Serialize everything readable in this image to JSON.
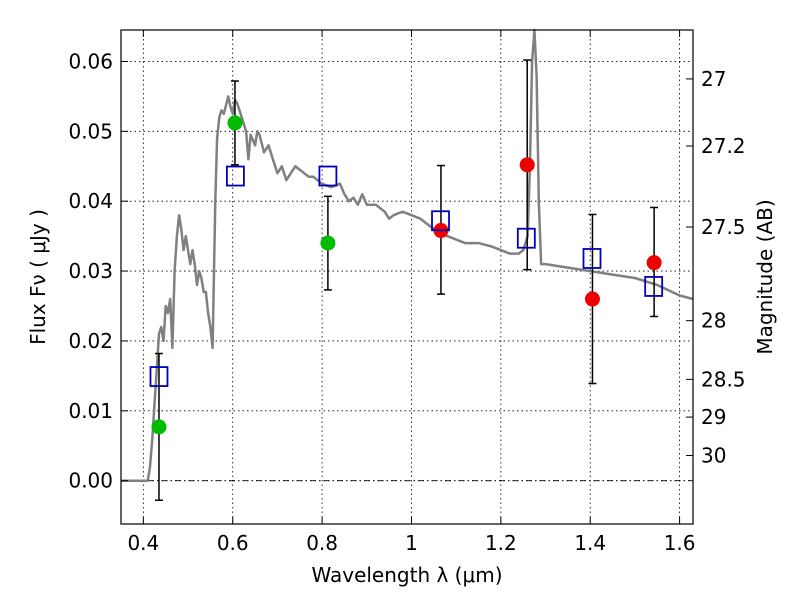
{
  "chart_data": {
    "type": "scatter",
    "xlabel": "Wavelength  λ (μm)",
    "ylabel": "Flux  Fν ( μJy )",
    "ylabel_right": "Magnitude (AB)",
    "xlim": [
      0.35,
      1.63
    ],
    "ylim": [
      -0.0062,
      0.0645
    ],
    "x_ticks": [
      0.4,
      0.6,
      0.8,
      1.0,
      1.2,
      1.4,
      1.6
    ],
    "x_tick_labels": [
      "0.4",
      "0.6",
      "0.8",
      "1",
      "1.2",
      "1.4",
      "1.6"
    ],
    "y_ticks": [
      0.0,
      0.01,
      0.02,
      0.03,
      0.04,
      0.05,
      0.06
    ],
    "y_tick_labels": [
      "0.00",
      "0.01",
      "0.02",
      "0.03",
      "0.04",
      "0.05",
      "0.06"
    ],
    "right_ticks": [
      {
        "label": "27",
        "flux": 0.0575
      },
      {
        "label": "27.2",
        "flux": 0.0479
      },
      {
        "label": "27.5",
        "flux": 0.0363
      },
      {
        "label": "28",
        "flux": 0.0229
      },
      {
        "label": "28.5",
        "flux": 0.0145
      },
      {
        "label": "29",
        "flux": 0.0091
      },
      {
        "label": "30",
        "flux": 0.0036
      }
    ],
    "grid": true,
    "colors": {
      "model": "#808080",
      "green": "#00bb00",
      "red": "#ee0000",
      "box": "#0000bb",
      "error": "#000000"
    },
    "model_spectrum": {
      "name": "",
      "points": [
        [
          0.35,
          0.0
        ],
        [
          0.4,
          0.0
        ],
        [
          0.41,
          0.0
        ],
        [
          0.415,
          0.002
        ],
        [
          0.42,
          0.006
        ],
        [
          0.425,
          0.011
        ],
        [
          0.43,
          0.016
        ],
        [
          0.435,
          0.021
        ],
        [
          0.44,
          0.022
        ],
        [
          0.445,
          0.02
        ],
        [
          0.45,
          0.025
        ],
        [
          0.455,
          0.024
        ],
        [
          0.46,
          0.026
        ],
        [
          0.465,
          0.019
        ],
        [
          0.47,
          0.03
        ],
        [
          0.475,
          0.035
        ],
        [
          0.48,
          0.038
        ],
        [
          0.485,
          0.036
        ],
        [
          0.49,
          0.033
        ],
        [
          0.495,
          0.035
        ],
        [
          0.5,
          0.033
        ],
        [
          0.505,
          0.031
        ],
        [
          0.51,
          0.033
        ],
        [
          0.515,
          0.031
        ],
        [
          0.52,
          0.028
        ],
        [
          0.525,
          0.03
        ],
        [
          0.53,
          0.029
        ],
        [
          0.535,
          0.027
        ],
        [
          0.54,
          0.027
        ],
        [
          0.545,
          0.024
        ],
        [
          0.55,
          0.022
        ],
        [
          0.555,
          0.019
        ],
        [
          0.558,
          0.03
        ],
        [
          0.561,
          0.04
        ],
        [
          0.565,
          0.049
        ],
        [
          0.57,
          0.052
        ],
        [
          0.575,
          0.053
        ],
        [
          0.58,
          0.0525
        ],
        [
          0.59,
          0.055
        ],
        [
          0.595,
          0.0535
        ],
        [
          0.6,
          0.0525
        ],
        [
          0.605,
          0.0545
        ],
        [
          0.61,
          0.054
        ],
        [
          0.62,
          0.052
        ],
        [
          0.63,
          0.05
        ],
        [
          0.635,
          0.046
        ],
        [
          0.64,
          0.0495
        ],
        [
          0.65,
          0.048
        ],
        [
          0.655,
          0.05
        ],
        [
          0.66,
          0.0495
        ],
        [
          0.67,
          0.047
        ],
        [
          0.68,
          0.048
        ],
        [
          0.69,
          0.046
        ],
        [
          0.7,
          0.044
        ],
        [
          0.71,
          0.045
        ],
        [
          0.72,
          0.043
        ],
        [
          0.73,
          0.044
        ],
        [
          0.74,
          0.045
        ],
        [
          0.75,
          0.0445
        ],
        [
          0.76,
          0.044
        ],
        [
          0.77,
          0.0435
        ],
        [
          0.78,
          0.0435
        ],
        [
          0.79,
          0.043
        ],
        [
          0.8,
          0.0425
        ],
        [
          0.82,
          0.042
        ],
        [
          0.84,
          0.0425
        ],
        [
          0.85,
          0.041
        ],
        [
          0.86,
          0.04
        ],
        [
          0.87,
          0.0405
        ],
        [
          0.88,
          0.0395
        ],
        [
          0.89,
          0.041
        ],
        [
          0.9,
          0.0395
        ],
        [
          0.92,
          0.0395
        ],
        [
          0.94,
          0.0385
        ],
        [
          0.95,
          0.0375
        ],
        [
          0.96,
          0.038
        ],
        [
          0.98,
          0.0385
        ],
        [
          1.0,
          0.038
        ],
        [
          1.02,
          0.0375
        ],
        [
          1.04,
          0.0365
        ],
        [
          1.06,
          0.0355
        ],
        [
          1.08,
          0.035
        ],
        [
          1.1,
          0.0345
        ],
        [
          1.12,
          0.034
        ],
        [
          1.15,
          0.034
        ],
        [
          1.18,
          0.0335
        ],
        [
          1.2,
          0.033
        ],
        [
          1.22,
          0.0325
        ],
        [
          1.24,
          0.0325
        ],
        [
          1.25,
          0.033
        ],
        [
          1.26,
          0.035
        ],
        [
          1.265,
          0.045
        ],
        [
          1.27,
          0.06
        ],
        [
          1.275,
          0.0645
        ],
        [
          1.28,
          0.058
        ],
        [
          1.285,
          0.04
        ],
        [
          1.29,
          0.031
        ],
        [
          1.3,
          0.031
        ],
        [
          1.35,
          0.0305
        ],
        [
          1.4,
          0.03
        ],
        [
          1.45,
          0.0295
        ],
        [
          1.5,
          0.029
        ],
        [
          1.55,
          0.028
        ],
        [
          1.6,
          0.0265
        ],
        [
          1.63,
          0.026
        ]
      ]
    },
    "series": [
      {
        "marker": "green-circle",
        "points": [
          {
            "x": 0.435,
            "y": 0.0077,
            "err_low": 0.0105,
            "err_high": 0.0105
          },
          {
            "x": 0.605,
            "y": 0.0512,
            "err_low": 0.006,
            "err_high": 0.006
          },
          {
            "x": 0.813,
            "y": 0.034,
            "err_low": 0.0067,
            "err_high": 0.0067
          }
        ]
      },
      {
        "marker": "red-circle",
        "points": [
          {
            "x": 1.066,
            "y": 0.0358,
            "err_low": 0.0091,
            "err_high": 0.0093
          },
          {
            "x": 1.259,
            "y": 0.0452,
            "err_low": 0.015,
            "err_high": 0.015
          },
          {
            "x": 1.405,
            "y": 0.026,
            "err_low": 0.0121,
            "err_high": 0.0121
          },
          {
            "x": 1.543,
            "y": 0.0312,
            "err_low": 0.0077,
            "err_high": 0.0079
          }
        ]
      },
      {
        "marker": "blue-open-square",
        "points": [
          {
            "x": 0.435,
            "y": 0.0149
          },
          {
            "x": 0.606,
            "y": 0.0436
          },
          {
            "x": 0.813,
            "y": 0.0436
          },
          {
            "x": 1.065,
            "y": 0.0372
          },
          {
            "x": 1.257,
            "y": 0.0347
          },
          {
            "x": 1.404,
            "y": 0.0318
          },
          {
            "x": 1.542,
            "y": 0.0278
          }
        ]
      }
    ]
  }
}
